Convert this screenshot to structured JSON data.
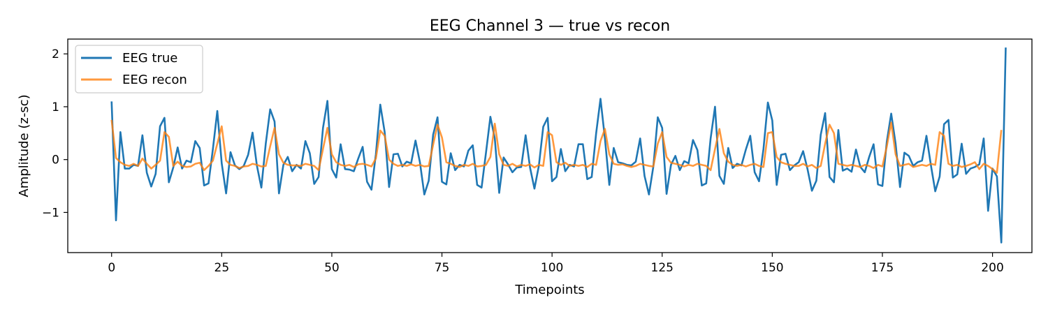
{
  "chart_data": {
    "type": "line",
    "title": "EEG Channel 3 — true vs recon",
    "xlabel": "Timepoints",
    "ylabel": "Amplitude (z-sc)",
    "xlim": [
      -9.95,
      208.95
    ],
    "ylim": [
      -1.76,
      2.28
    ],
    "xticks": [
      0,
      25,
      50,
      75,
      100,
      125,
      150,
      175,
      200
    ],
    "xtick_labels": [
      "0",
      "25",
      "50",
      "75",
      "100",
      "125",
      "150",
      "175",
      "200"
    ],
    "yticks": [
      -1,
      0,
      1,
      2
    ],
    "ytick_labels": [
      "−1",
      "0",
      "1",
      "2"
    ],
    "grid": false,
    "legend_position": "upper left",
    "series": [
      {
        "name": "EEG true",
        "color": "#1f77b4",
        "values": [
          1.1,
          -1.15,
          0.52,
          -0.17,
          -0.17,
          -0.1,
          -0.12,
          0.46,
          -0.25,
          -0.51,
          -0.27,
          0.63,
          0.79,
          -0.43,
          -0.15,
          0.23,
          -0.17,
          -0.02,
          -0.05,
          0.35,
          0.22,
          -0.49,
          -0.45,
          0.2,
          0.92,
          -0.07,
          -0.64,
          0.14,
          -0.11,
          -0.18,
          -0.12,
          0.09,
          0.51,
          -0.12,
          -0.53,
          0.3,
          0.95,
          0.72,
          -0.64,
          -0.1,
          0.05,
          -0.22,
          -0.1,
          -0.17,
          0.35,
          0.12,
          -0.46,
          -0.33,
          0.6,
          1.11,
          -0.18,
          -0.34,
          0.29,
          -0.18,
          -0.19,
          -0.22,
          0.02,
          0.24,
          -0.42,
          -0.57,
          0.1,
          1.04,
          0.52,
          -0.52,
          0.1,
          0.11,
          -0.13,
          -0.04,
          -0.07,
          0.36,
          -0.05,
          -0.66,
          -0.4,
          0.47,
          0.8,
          -0.42,
          -0.47,
          0.12,
          -0.2,
          -0.1,
          -0.13,
          0.17,
          0.27,
          -0.48,
          -0.53,
          0.13,
          0.81,
          0.4,
          -0.63,
          0.04,
          -0.09,
          -0.24,
          -0.15,
          -0.14,
          0.46,
          -0.15,
          -0.55,
          -0.12,
          0.62,
          0.79,
          -0.41,
          -0.33,
          0.2,
          -0.22,
          -0.1,
          -0.13,
          0.29,
          0.29,
          -0.37,
          -0.33,
          0.49,
          1.15,
          0.4,
          -0.48,
          0.22,
          -0.05,
          -0.07,
          -0.1,
          -0.11,
          -0.04,
          0.4,
          -0.31,
          -0.66,
          -0.13,
          0.8,
          0.6,
          -0.65,
          -0.1,
          0.07,
          -0.2,
          -0.03,
          -0.07,
          0.37,
          0.18,
          -0.49,
          -0.45,
          0.4,
          1.0,
          -0.31,
          -0.46,
          0.22,
          -0.16,
          -0.08,
          -0.11,
          0.19,
          0.45,
          -0.24,
          -0.41,
          0.2,
          1.08,
          0.74,
          -0.48,
          0.09,
          0.11,
          -0.2,
          -0.11,
          -0.05,
          0.16,
          -0.18,
          -0.59,
          -0.4,
          0.47,
          0.88,
          -0.33,
          -0.43,
          0.56,
          -0.21,
          -0.17,
          -0.23,
          0.19,
          -0.14,
          -0.24,
          0.05,
          0.29,
          -0.47,
          -0.5,
          0.34,
          0.87,
          0.3,
          -0.52,
          0.13,
          0.07,
          -0.12,
          -0.05,
          -0.02,
          0.45,
          -0.1,
          -0.6,
          -0.32,
          0.67,
          0.75,
          -0.34,
          -0.28,
          0.3,
          -0.27,
          -0.17,
          -0.14,
          -0.09,
          0.4,
          -0.97,
          -0.17,
          -0.32,
          -1.57,
          2.12
        ]
      },
      {
        "name": "EEG recon",
        "color": "#ff7f0e",
        "values": [
          0.75,
          0.03,
          -0.05,
          -0.1,
          -0.12,
          -0.08,
          -0.12,
          0.02,
          -0.08,
          -0.17,
          -0.1,
          -0.02,
          0.52,
          0.43,
          -0.12,
          -0.04,
          -0.12,
          -0.14,
          -0.13,
          -0.08,
          -0.06,
          -0.2,
          -0.12,
          -0.02,
          0.3,
          0.63,
          -0.02,
          -0.1,
          -0.12,
          -0.16,
          -0.13,
          -0.12,
          -0.08,
          -0.1,
          -0.13,
          -0.12,
          0.25,
          0.6,
          0.1,
          -0.06,
          -0.1,
          -0.11,
          -0.11,
          -0.12,
          -0.08,
          -0.1,
          -0.12,
          -0.2,
          0.2,
          0.6,
          0.1,
          -0.05,
          -0.1,
          -0.12,
          -0.1,
          -0.14,
          -0.09,
          -0.08,
          -0.1,
          -0.13,
          0.02,
          0.55,
          0.45,
          0.0,
          -0.08,
          -0.12,
          -0.1,
          -0.12,
          -0.09,
          -0.12,
          -0.1,
          -0.13,
          -0.12,
          0.28,
          0.66,
          0.42,
          -0.05,
          -0.08,
          -0.12,
          -0.14,
          -0.1,
          -0.12,
          -0.08,
          -0.13,
          -0.12,
          -0.1,
          0.05,
          0.68,
          0.1,
          -0.1,
          -0.12,
          -0.08,
          -0.13,
          -0.1,
          -0.12,
          -0.09,
          -0.15,
          -0.1,
          -0.12,
          0.52,
          0.46,
          -0.05,
          -0.1,
          -0.06,
          -0.12,
          -0.1,
          -0.12,
          -0.1,
          -0.14,
          -0.08,
          -0.1,
          0.35,
          0.58,
          0.1,
          -0.08,
          -0.1,
          -0.09,
          -0.12,
          -0.14,
          -0.12,
          -0.08,
          -0.1,
          -0.12,
          -0.13,
          0.3,
          0.52,
          0.05,
          -0.06,
          -0.08,
          -0.1,
          -0.13,
          -0.1,
          -0.12,
          -0.08,
          -0.1,
          -0.12,
          -0.2,
          0.2,
          0.58,
          0.12,
          -0.04,
          -0.1,
          -0.12,
          -0.1,
          -0.13,
          -0.1,
          -0.08,
          -0.12,
          -0.14,
          0.5,
          0.52,
          0.05,
          -0.05,
          -0.08,
          -0.1,
          -0.12,
          -0.12,
          -0.08,
          -0.13,
          -0.1,
          -0.16,
          -0.12,
          0.3,
          0.66,
          0.5,
          -0.08,
          -0.1,
          -0.12,
          -0.1,
          -0.12,
          -0.14,
          -0.1,
          -0.12,
          -0.16,
          -0.1,
          -0.13,
          0.25,
          0.7,
          0.1,
          -0.12,
          -0.1,
          -0.08,
          -0.14,
          -0.12,
          -0.1,
          -0.12,
          -0.08,
          -0.1,
          0.52,
          0.45,
          -0.08,
          -0.12,
          -0.1,
          -0.14,
          -0.12,
          -0.09,
          -0.05,
          -0.18,
          -0.08,
          -0.12,
          -0.18,
          -0.25,
          0.56
        ]
      }
    ]
  }
}
